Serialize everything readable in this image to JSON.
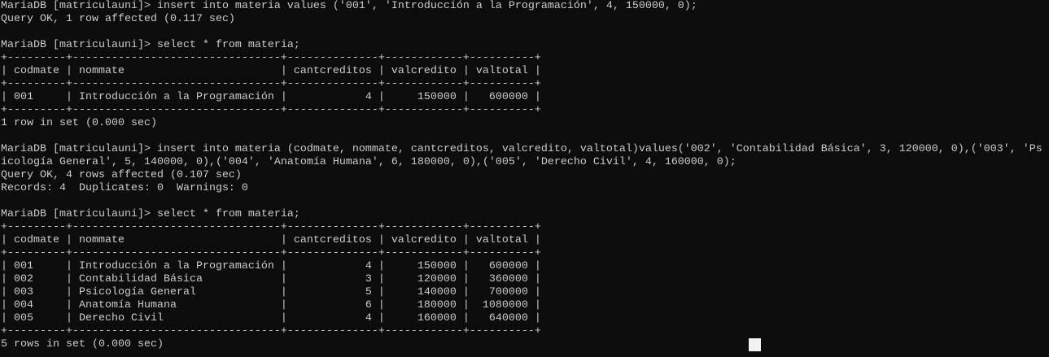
{
  "terminal": {
    "lines": [
      "MariaDB [matriculauni]> insert into materia values ('001', 'Introducción a la Programación', 4, 150000, 0);",
      "Query OK, 1 row affected (0.117 sec)",
      "",
      "MariaDB [matriculauni]> select * from materia;",
      "+---------+--------------------------------+--------------+------------+----------+",
      "| codmate | nommate                        | cantcreditos | valcredito | valtotal |",
      "+---------+--------------------------------+--------------+------------+----------+",
      "| 001     | Introducción a la Programación |            4 |     150000 |   600000 |",
      "+---------+--------------------------------+--------------+------------+----------+",
      "1 row in set (0.000 sec)",
      "",
      "MariaDB [matriculauni]> insert into materia (codmate, nommate, cantcreditos, valcredito, valtotal)values('002', 'Contabilidad Básica', 3, 120000, 0),('003', 'Ps",
      "icología General', 5, 140000, 0),('004', 'Anatomía Humana', 6, 180000, 0),('005', 'Derecho Civil', 4, 160000, 0);",
      "Query OK, 4 rows affected (0.107 sec)",
      "Records: 4  Duplicates: 0  Warnings: 0",
      "",
      "MariaDB [matriculauni]> select * from materia;",
      "+---------+--------------------------------+--------------+------------+----------+",
      "| codmate | nommate                        | cantcreditos | valcredito | valtotal |",
      "+---------+--------------------------------+--------------+------------+----------+",
      "| 001     | Introducción a la Programación |            4 |     150000 |   600000 |",
      "| 002     | Contabilidad Básica            |            3 |     120000 |   360000 |",
      "| 003     | Psicología General             |            5 |     140000 |   700000 |",
      "| 004     | Anatomía Humana                |            6 |     180000 |  1080000 |",
      "| 005     | Derecho Civil                  |            4 |     160000 |   640000 |",
      "+---------+--------------------------------+--------------+------------+----------+",
      "5 rows in set (0.000 sec)"
    ]
  },
  "colors": {
    "background": "#0c0c0c",
    "foreground": "#cccccc",
    "cursor": "#f2f2f2"
  }
}
